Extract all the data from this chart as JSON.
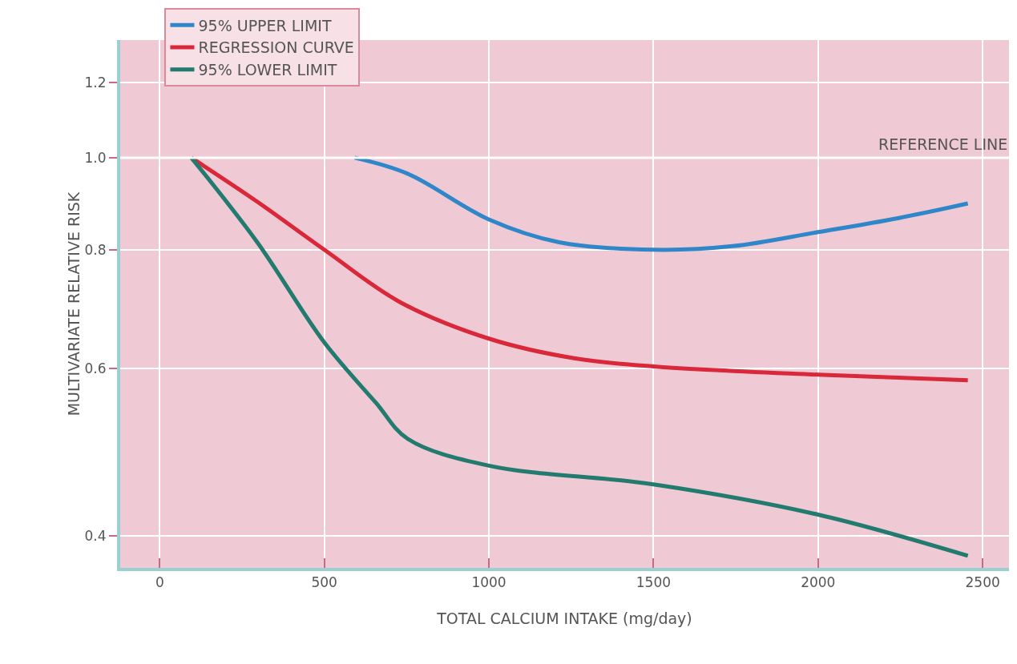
{
  "chart_data": {
    "type": "line",
    "xlabel": "TOTAL CALCIUM INTAKE (mg/day)",
    "ylabel": "MULTIVARIATE RELATIVE RISK",
    "series": [
      {
        "name": "95% UPPER LIMIT",
        "color": "#2f86c8",
        "x": [
          592,
          753,
          1000,
          1211,
          1500,
          1740,
          2000,
          2245,
          2455
        ],
        "values": [
          1.0,
          0.962,
          0.861,
          0.815,
          0.8,
          0.807,
          0.835,
          0.864,
          0.895
        ]
      },
      {
        "name": "REGRESSION CURVE",
        "color": "#d9283a",
        "x": [
          96,
          296,
          500,
          729,
          1000,
          1259,
          1500,
          2000,
          2455
        ],
        "values": [
          1.0,
          0.899,
          0.8,
          0.705,
          0.645,
          0.615,
          0.603,
          0.591,
          0.583
        ]
      },
      {
        "name": "95% LOWER LIMIT",
        "color": "#237a6e",
        "x": [
          96,
          296,
          500,
          657,
          753,
          1000,
          1500,
          2000,
          2455
        ],
        "values": [
          1.0,
          0.815,
          0.639,
          0.552,
          0.506,
          0.474,
          0.453,
          0.421,
          0.381
        ]
      }
    ],
    "xlim": [
      -120,
      2580
    ],
    "xticks": [
      0,
      500,
      1000,
      1500,
      2000,
      2500
    ],
    "ylim": [
      0.37,
      1.33
    ],
    "yticks": [
      {
        "value": 0.4,
        "label": "0.4"
      },
      {
        "value": 0.6,
        "label": "0.6"
      },
      {
        "value": 0.8,
        "label": "0.8"
      },
      {
        "value": 1,
        "label": "1.0"
      },
      {
        "value": 1.2,
        "label": "1.2"
      }
    ],
    "log": "y",
    "grid": true,
    "legend": "top left",
    "marker": "none",
    "line_style": "solid",
    "ref_lines": [
      {
        "axis": "y",
        "value": 1,
        "label": "REFERENCE LINE",
        "color": "#ffffff"
      }
    ]
  }
}
